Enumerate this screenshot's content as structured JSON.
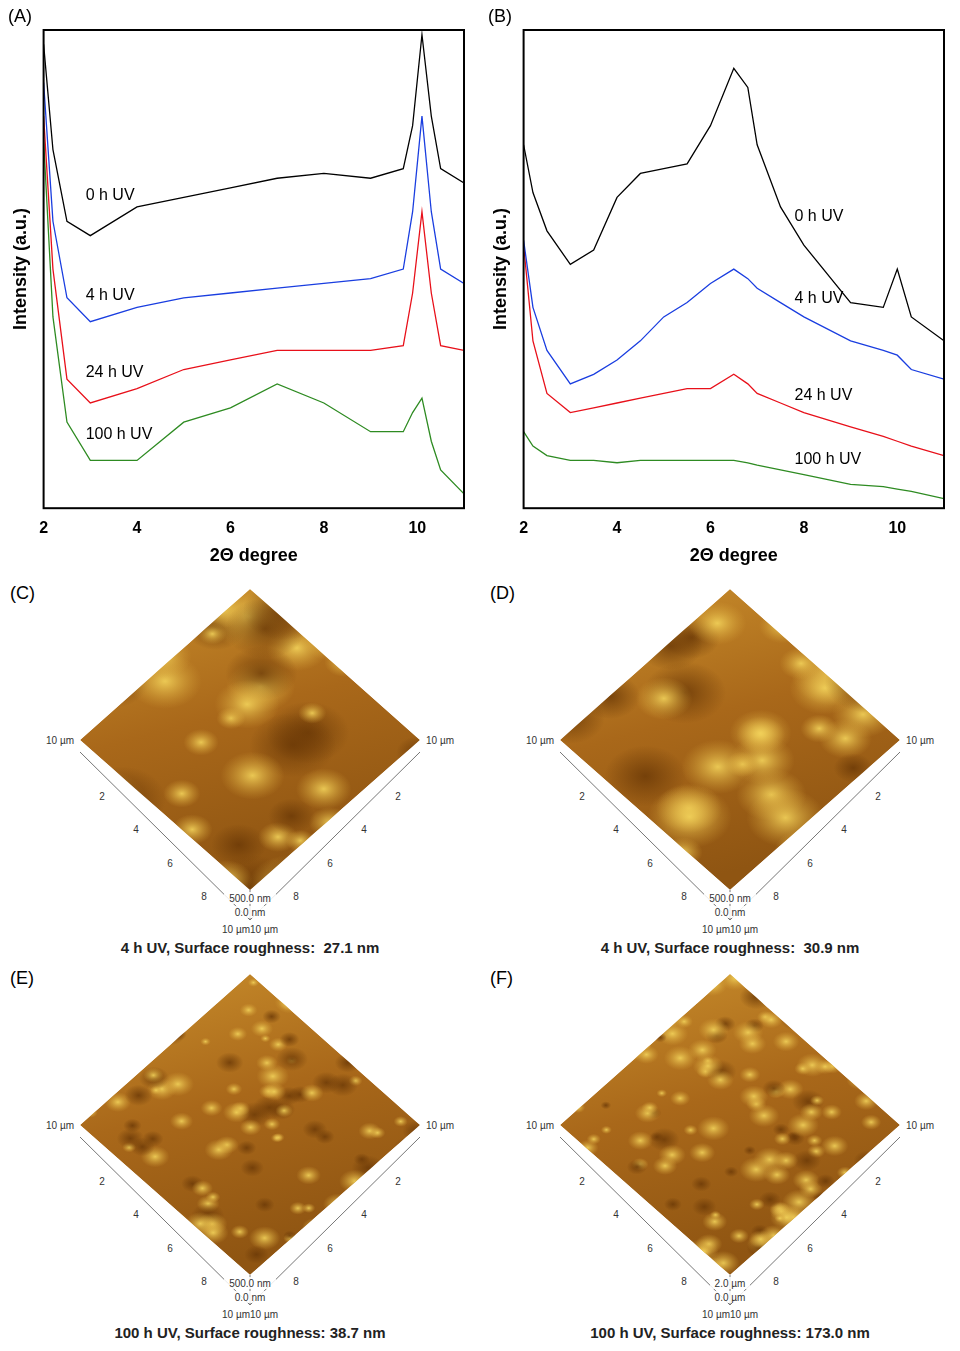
{
  "chart_data": [
    {
      "type": "line",
      "panel_label": "(A)",
      "x_label": "2Θ degree",
      "y_label": "Intensity (a.u.)",
      "x": [
        2,
        2.2,
        2.5,
        3,
        4,
        5,
        6,
        7,
        8,
        9,
        9.7,
        9.9,
        10.1,
        10.3,
        10.5,
        11
      ],
      "series": [
        {
          "name": "0 h UV",
          "color": "#000000",
          "values": [
            97,
            75,
            60,
            57,
            63,
            65,
            67,
            69,
            70,
            69,
            71,
            80,
            99,
            82,
            71,
            68
          ]
        },
        {
          "name": "4 h UV",
          "color": "#1a3ee0",
          "values": [
            89,
            60,
            44,
            39,
            42,
            44,
            45,
            46,
            47,
            48,
            50,
            62,
            82,
            62,
            50,
            47
          ]
        },
        {
          "name": "24 h UV",
          "color": "#e8101a",
          "values": [
            82,
            50,
            27,
            22,
            25,
            29,
            31,
            33,
            33,
            33,
            34,
            45,
            62,
            45,
            34,
            33
          ]
        },
        {
          "name": "100 h UV",
          "color": "#2e8b22",
          "values": [
            77,
            40,
            18,
            10,
            10,
            18,
            21,
            26,
            22,
            16,
            16,
            20,
            23,
            14,
            8,
            3
          ]
        }
      ],
      "xlim": [
        2,
        11
      ],
      "xticks": [
        2,
        4,
        6,
        8,
        10
      ],
      "ylim": [
        0,
        100
      ],
      "tick_labels": "x",
      "grid": false
    },
    {
      "type": "line",
      "panel_label": "(B)",
      "x_label": "2Θ degree",
      "y_label": "Intensity (a.u.)",
      "x": [
        2,
        2.2,
        2.5,
        3,
        3.5,
        4,
        4.5,
        5,
        5.5,
        6,
        6.5,
        6.8,
        7,
        7.5,
        8,
        9,
        9.7,
        10,
        10.3,
        11
      ],
      "series": [
        {
          "name": "0 h UV",
          "color": "#000000",
          "values": [
            76,
            66,
            58,
            51,
            54,
            65,
            70,
            71,
            72,
            80,
            92,
            88,
            76,
            63,
            55,
            43,
            42,
            50,
            40,
            35
          ]
        },
        {
          "name": "4 h UV",
          "color": "#1a3ee0",
          "values": [
            56,
            42,
            33,
            26,
            28,
            31,
            35,
            40,
            43,
            47,
            50,
            48,
            46,
            43,
            40,
            35,
            33,
            32,
            29,
            27
          ]
        },
        {
          "name": "24 h UV",
          "color": "#e8101a",
          "values": [
            55,
            35,
            24,
            20,
            21,
            22,
            23,
            24,
            25,
            25,
            28,
            26,
            24,
            22,
            20,
            17,
            15,
            14,
            13,
            11
          ]
        },
        {
          "name": "100 h UV",
          "color": "#2e8b22",
          "values": [
            16,
            13,
            11,
            10,
            10,
            9.5,
            10,
            10,
            10,
            10,
            10,
            9.5,
            9,
            8,
            7,
            5,
            4.5,
            4,
            3.5,
            2
          ]
        }
      ],
      "xlim": [
        2,
        11
      ],
      "xticks": [
        2,
        4,
        6,
        8,
        10
      ],
      "ylim": [
        0,
        100
      ],
      "tick_labels": "x",
      "grid": false
    }
  ],
  "afm_panels": [
    {
      "panel_label": "(C)",
      "caption": "4 h UV, Surface roughness:  27.1 nm",
      "corner_labels": [
        "10 µm",
        "10 µm"
      ],
      "edge_ticks": [
        2,
        4,
        6,
        8
      ],
      "z_labels": [
        "500.0 nm",
        "0.0 nm"
      ],
      "bottom_label": "10 µm10 µm"
    },
    {
      "panel_label": "(D)",
      "caption": "4 h UV, Surface roughness:  30.9 nm",
      "corner_labels": [
        "10 µm",
        "10 µm"
      ],
      "edge_ticks": [
        2,
        4,
        6,
        8
      ],
      "z_labels": [
        "500.0 nm",
        "0.0 nm"
      ],
      "bottom_label": "10 µm10 µm"
    },
    {
      "panel_label": "(E)",
      "caption": "100 h UV, Surface roughness: 38.7 nm",
      "corner_labels": [
        "10 µm",
        "10 µm"
      ],
      "edge_ticks": [
        2,
        4,
        6,
        8
      ],
      "z_labels": [
        "500.0 nm",
        "0.0 nm"
      ],
      "bottom_label": "10 µm10 µm"
    },
    {
      "panel_label": "(F)",
      "caption": "100 h UV, Surface roughness: 173.0 nm",
      "corner_labels": [
        "10 µm",
        "10 µm"
      ],
      "edge_ticks": [
        2,
        4,
        6,
        8
      ],
      "z_labels": [
        "2.0 µm",
        "0.0 µm"
      ],
      "bottom_label": "10 µm10 µm"
    }
  ]
}
